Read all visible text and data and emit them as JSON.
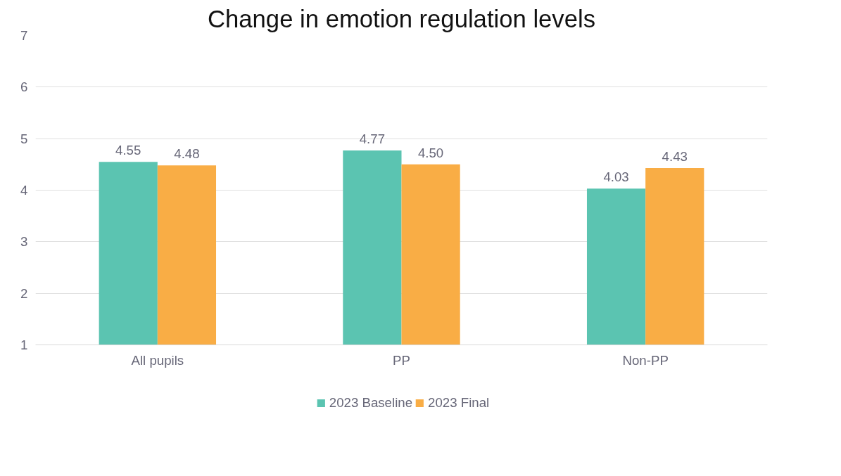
{
  "chart_data": {
    "type": "bar",
    "title": "Change in emotion regulation levels",
    "categories": [
      "All pupils",
      "PP",
      "Non-PP"
    ],
    "series": [
      {
        "name": "2023 Baseline",
        "color": "#5bc4b1",
        "values": [
          4.55,
          4.77,
          4.03
        ]
      },
      {
        "name": "2023 Final",
        "color": "#f9ad45",
        "values": [
          4.48,
          4.5,
          4.43
        ]
      }
    ],
    "ylim": [
      1,
      7
    ],
    "yticks": [
      1,
      2,
      3,
      4,
      5,
      6,
      7
    ],
    "grid": "y",
    "legend": "bottom",
    "value_labels": [
      [
        "4.55",
        "4.77",
        "4.03"
      ],
      [
        "4.48",
        "4.50",
        "4.43"
      ]
    ]
  }
}
